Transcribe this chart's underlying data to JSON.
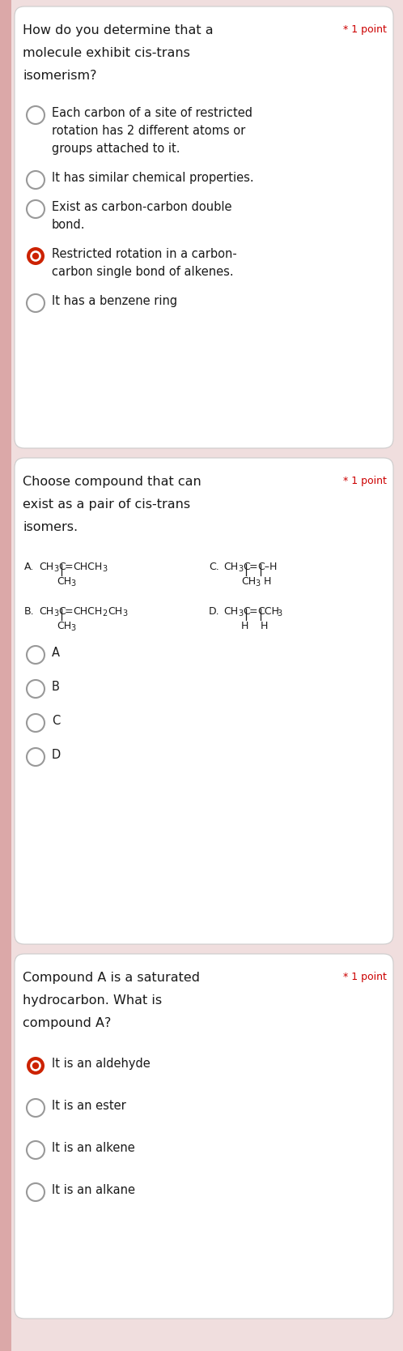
{
  "bg_color": "#f0dede",
  "card_color": "#ffffff",
  "text_color": "#1a1a1a",
  "star_color": "#cc0000",
  "radio_border": "#888888",
  "radio_selected_fill": "#cc2200",
  "left_bar_color": "#dba8a8",
  "sections": [
    {
      "question_lines": [
        "How do you determine that a",
        "molecule exhibit cis-trans",
        "isomerism?"
      ],
      "point_label": "* 1 point",
      "options": [
        {
          "lines": [
            "Each carbon of a site of restricted",
            "rotation has 2 different atoms or",
            "groups attached to it."
          ],
          "selected": false
        },
        {
          "lines": [
            "It has similar chemical properties."
          ],
          "selected": false
        },
        {
          "lines": [
            "Exist as carbon-carbon double",
            "bond."
          ],
          "selected": false
        },
        {
          "lines": [
            "Restricted rotation in a carbon-",
            "carbon single bond of alkenes."
          ],
          "selected": true
        },
        {
          "lines": [
            "It has a benzene ring"
          ],
          "selected": false
        }
      ],
      "has_compounds": false
    },
    {
      "question_lines": [
        "Choose compound that can",
        "exist as a pair of cis-trans",
        "isomers."
      ],
      "point_label": "* 1 point",
      "options": [
        {
          "lines": [
            "A"
          ],
          "selected": false
        },
        {
          "lines": [
            "B"
          ],
          "selected": false
        },
        {
          "lines": [
            "C"
          ],
          "selected": false
        },
        {
          "lines": [
            "D"
          ],
          "selected": false
        }
      ],
      "has_compounds": true
    },
    {
      "question_lines": [
        "Compound A is a saturated",
        "hydrocarbon. What is",
        "compound A?"
      ],
      "point_label": "* 1 point",
      "options": [
        {
          "lines": [
            "It is an aldehyde"
          ],
          "selected": true
        },
        {
          "lines": [
            "It is an ester"
          ],
          "selected": false
        },
        {
          "lines": [
            "It is an alkene"
          ],
          "selected": false
        },
        {
          "lines": [
            "It is an alkane"
          ],
          "selected": false
        }
      ],
      "has_compounds": false
    }
  ]
}
